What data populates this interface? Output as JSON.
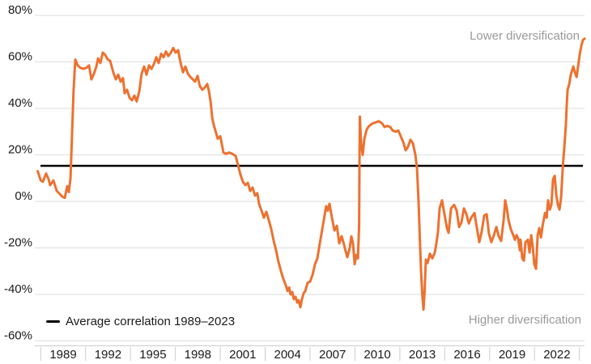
{
  "annotations": {
    "lower": "Lower diversification",
    "higher": "Higher diversification"
  },
  "legend": {
    "average_label": "Average correlation 1989–2023"
  },
  "chart_data": {
    "type": "line",
    "line_color": "#ED712F",
    "text_color": "#1a1a1a",
    "annotation_color": "#9a9a9a",
    "average_line": {
      "label": "Average correlation 1989–2023",
      "value": 15.3,
      "color": "#000000"
    },
    "y_axis": {
      "unit": "%",
      "min": -60,
      "max": 80,
      "tick_step": 20,
      "ticks": [
        80,
        60,
        40,
        20,
        0,
        -20,
        -40,
        -60
      ]
    },
    "x_axis": {
      "label_interval_years": 3,
      "tick_labels": [
        1989,
        1992,
        1995,
        1998,
        2001,
        2004,
        2007,
        2010,
        2013,
        2016,
        2019,
        2022
      ]
    },
    "grid": true,
    "legend_position": "bottom-left",
    "points": [
      [
        1987.3,
        13
      ],
      [
        1987.5,
        9
      ],
      [
        1987.65,
        8.5
      ],
      [
        1987.86,
        12
      ],
      [
        1988.03,
        9.5
      ],
      [
        1988.13,
        7
      ],
      [
        1988.35,
        9
      ],
      [
        1988.57,
        4.5
      ],
      [
        1988.73,
        3.5
      ],
      [
        1988.95,
        2
      ],
      [
        1989.11,
        1.5
      ],
      [
        1989.27,
        6.5
      ],
      [
        1989.38,
        4
      ],
      [
        1989.49,
        10
      ],
      [
        1989.6,
        30
      ],
      [
        1989.7,
        48
      ],
      [
        1989.81,
        61
      ],
      [
        1989.97,
        58.5
      ],
      [
        1990.14,
        57.5
      ],
      [
        1990.35,
        57
      ],
      [
        1990.57,
        57.5
      ],
      [
        1990.73,
        58.5
      ],
      [
        1990.89,
        52.5
      ],
      [
        1991.06,
        55
      ],
      [
        1991.22,
        58
      ],
      [
        1991.33,
        61.5
      ],
      [
        1991.49,
        59.5
      ],
      [
        1991.65,
        64
      ],
      [
        1991.81,
        63
      ],
      [
        1991.98,
        61
      ],
      [
        1992.14,
        60.5
      ],
      [
        1992.35,
        55.5
      ],
      [
        1992.52,
        52.5
      ],
      [
        1992.68,
        54.5
      ],
      [
        1992.84,
        51.5
      ],
      [
        1993.0,
        53
      ],
      [
        1993.11,
        46.5
      ],
      [
        1993.27,
        48
      ],
      [
        1993.44,
        44.5
      ],
      [
        1993.6,
        43.5
      ],
      [
        1993.76,
        45.5
      ],
      [
        1993.92,
        43
      ],
      [
        1994.09,
        47.5
      ],
      [
        1994.25,
        55
      ],
      [
        1994.41,
        58
      ],
      [
        1994.57,
        54.5
      ],
      [
        1994.74,
        58.5
      ],
      [
        1994.9,
        57
      ],
      [
        1995.06,
        59
      ],
      [
        1995.22,
        62
      ],
      [
        1995.38,
        59.5
      ],
      [
        1995.55,
        63.5
      ],
      [
        1995.71,
        62
      ],
      [
        1995.87,
        64.5
      ],
      [
        1996.03,
        62.5
      ],
      [
        1996.2,
        64
      ],
      [
        1996.36,
        66
      ],
      [
        1996.52,
        64
      ],
      [
        1996.68,
        65
      ],
      [
        1996.85,
        59.5
      ],
      [
        1997.01,
        55.5
      ],
      [
        1997.17,
        58
      ],
      [
        1997.33,
        55
      ],
      [
        1997.5,
        53.5
      ],
      [
        1997.66,
        52.5
      ],
      [
        1997.82,
        51.5
      ],
      [
        1997.98,
        54
      ],
      [
        1998.14,
        49.5
      ],
      [
        1998.31,
        48
      ],
      [
        1998.47,
        49
      ],
      [
        1998.63,
        50.5
      ],
      [
        1998.74,
        47.5
      ],
      [
        1998.85,
        43
      ],
      [
        1998.96,
        36
      ],
      [
        1999.06,
        33
      ],
      [
        1999.17,
        30.5
      ],
      [
        1999.33,
        27
      ],
      [
        1999.5,
        28
      ],
      [
        1999.61,
        24.5
      ],
      [
        1999.71,
        21
      ],
      [
        1999.88,
        20.5
      ],
      [
        2000.09,
        21
      ],
      [
        2000.31,
        20.5
      ],
      [
        2000.53,
        19.5
      ],
      [
        2000.69,
        15.5
      ],
      [
        2000.85,
        11.5
      ],
      [
        2001.01,
        8.5
      ],
      [
        2001.18,
        7
      ],
      [
        2001.34,
        8
      ],
      [
        2001.5,
        4.5
      ],
      [
        2001.66,
        6
      ],
      [
        2001.82,
        2.5
      ],
      [
        2001.98,
        3.5
      ],
      [
        2002.09,
        -1
      ],
      [
        2002.26,
        -4
      ],
      [
        2002.42,
        -7
      ],
      [
        2002.58,
        -4.5
      ],
      [
        2002.74,
        -8
      ],
      [
        2002.91,
        -12
      ],
      [
        2003.07,
        -17
      ],
      [
        2003.23,
        -21
      ],
      [
        2003.39,
        -26
      ],
      [
        2003.56,
        -30
      ],
      [
        2003.72,
        -33.5
      ],
      [
        2003.88,
        -36
      ],
      [
        2003.99,
        -38.5
      ],
      [
        2004.1,
        -37
      ],
      [
        2004.2,
        -40
      ],
      [
        2004.31,
        -39
      ],
      [
        2004.42,
        -42
      ],
      [
        2004.53,
        -41
      ],
      [
        2004.64,
        -43.5
      ],
      [
        2004.74,
        -42.5
      ],
      [
        2004.85,
        -45.5
      ],
      [
        2004.96,
        -42
      ],
      [
        2005.07,
        -39.5
      ],
      [
        2005.18,
        -38.5
      ],
      [
        2005.34,
        -35
      ],
      [
        2005.5,
        -34.5
      ],
      [
        2005.67,
        -31.5
      ],
      [
        2005.83,
        -27
      ],
      [
        2005.99,
        -24.5
      ],
      [
        2006.1,
        -20
      ],
      [
        2006.26,
        -14
      ],
      [
        2006.42,
        -8
      ],
      [
        2006.58,
        -2
      ],
      [
        2006.69,
        -4
      ],
      [
        2006.8,
        -1
      ],
      [
        2006.96,
        -7
      ],
      [
        2007.13,
        -12.5
      ],
      [
        2007.29,
        -10.5
      ],
      [
        2007.45,
        -18
      ],
      [
        2007.61,
        -15
      ],
      [
        2007.77,
        -18.5
      ],
      [
        2007.88,
        -21.5
      ],
      [
        2007.99,
        -24
      ],
      [
        2008.15,
        -20
      ],
      [
        2008.26,
        -15
      ],
      [
        2008.37,
        -18
      ],
      [
        2008.48,
        -27
      ],
      [
        2008.59,
        -23
      ],
      [
        2008.7,
        -24.5
      ],
      [
        2008.78,
        -10
      ],
      [
        2008.8,
        15
      ],
      [
        2008.83,
        36.5
      ],
      [
        2008.91,
        25
      ],
      [
        2009.02,
        20
      ],
      [
        2009.13,
        27
      ],
      [
        2009.29,
        31
      ],
      [
        2009.45,
        32.5
      ],
      [
        2009.67,
        33.5
      ],
      [
        2009.89,
        34
      ],
      [
        2010.1,
        34.5
      ],
      [
        2010.32,
        33.5
      ],
      [
        2010.48,
        32
      ],
      [
        2010.65,
        32.5
      ],
      [
        2010.86,
        32
      ],
      [
        2011.02,
        30.5
      ],
      [
        2011.24,
        30
      ],
      [
        2011.4,
        30.5
      ],
      [
        2011.56,
        28
      ],
      [
        2011.73,
        25.5
      ],
      [
        2011.89,
        22
      ],
      [
        2012.05,
        23.5
      ],
      [
        2012.21,
        26.5
      ],
      [
        2012.37,
        25
      ],
      [
        2012.54,
        20
      ],
      [
        2012.65,
        14
      ],
      [
        2012.75,
        0
      ],
      [
        2012.86,
        -20
      ],
      [
        2012.92,
        -30
      ],
      [
        2013.0,
        -40
      ],
      [
        2013.08,
        -46.5
      ],
      [
        2013.16,
        -38
      ],
      [
        2013.24,
        -25
      ],
      [
        2013.35,
        -26.5
      ],
      [
        2013.51,
        -22.5
      ],
      [
        2013.67,
        -24.5
      ],
      [
        2013.84,
        -22
      ],
      [
        2013.94,
        -18
      ],
      [
        2014.05,
        -13
      ],
      [
        2014.16,
        -3
      ],
      [
        2014.32,
        0.5
      ],
      [
        2014.48,
        -5.5
      ],
      [
        2014.65,
        -11.5
      ],
      [
        2014.76,
        -13.5
      ],
      [
        2014.92,
        -3
      ],
      [
        2015.13,
        -1.5
      ],
      [
        2015.3,
        -4
      ],
      [
        2015.46,
        -11
      ],
      [
        2015.62,
        -9
      ],
      [
        2015.78,
        -3
      ],
      [
        2015.95,
        -5.5
      ],
      [
        2016.11,
        -9.5
      ],
      [
        2016.27,
        -7
      ],
      [
        2016.49,
        -5
      ],
      [
        2016.65,
        -11.5
      ],
      [
        2016.81,
        -17.5
      ],
      [
        2016.97,
        -13
      ],
      [
        2017.14,
        -6
      ],
      [
        2017.3,
        -5.5
      ],
      [
        2017.46,
        -14
      ],
      [
        2017.62,
        -17.5
      ],
      [
        2017.79,
        -14.5
      ],
      [
        2017.95,
        -11
      ],
      [
        2018.11,
        -15
      ],
      [
        2018.27,
        -17
      ],
      [
        2018.44,
        -8
      ],
      [
        2018.54,
        0.5
      ],
      [
        2018.65,
        -3
      ],
      [
        2018.76,
        -8
      ],
      [
        2018.92,
        -12
      ],
      [
        2019.08,
        -14.5
      ],
      [
        2019.19,
        -16.5
      ],
      [
        2019.3,
        -14.5
      ],
      [
        2019.41,
        -16
      ],
      [
        2019.52,
        -21
      ],
      [
        2019.57,
        -16.5
      ],
      [
        2019.68,
        -24.5
      ],
      [
        2019.79,
        -25.5
      ],
      [
        2019.9,
        -17.5
      ],
      [
        2020.06,
        -16.5
      ],
      [
        2020.17,
        -22
      ],
      [
        2020.28,
        -14.5
      ],
      [
        2020.39,
        -20
      ],
      [
        2020.49,
        -27
      ],
      [
        2020.6,
        -29
      ],
      [
        2020.71,
        -14.5
      ],
      [
        2020.82,
        -11.5
      ],
      [
        2020.93,
        -15.5
      ],
      [
        2021.04,
        -10.5
      ],
      [
        2021.2,
        -5
      ],
      [
        2021.31,
        -7
      ],
      [
        2021.41,
        0.5
      ],
      [
        2021.52,
        -3.5
      ],
      [
        2021.63,
        -1.5
      ],
      [
        2021.74,
        9.5
      ],
      [
        2021.85,
        11
      ],
      [
        2021.96,
        2.5
      ],
      [
        2022.06,
        -1.5
      ],
      [
        2022.17,
        -3.5
      ],
      [
        2022.28,
        2
      ],
      [
        2022.39,
        15
      ],
      [
        2022.5,
        24
      ],
      [
        2022.6,
        33
      ],
      [
        2022.66,
        42
      ],
      [
        2022.71,
        48
      ],
      [
        2022.82,
        50.5
      ],
      [
        2022.93,
        54.5
      ],
      [
        2023.04,
        57
      ],
      [
        2023.09,
        58
      ],
      [
        2023.2,
        55.5
      ],
      [
        2023.31,
        53.5
      ],
      [
        2023.42,
        58.5
      ],
      [
        2023.52,
        63
      ],
      [
        2023.63,
        67
      ],
      [
        2023.74,
        69.5
      ],
      [
        2023.85,
        70
      ]
    ]
  }
}
